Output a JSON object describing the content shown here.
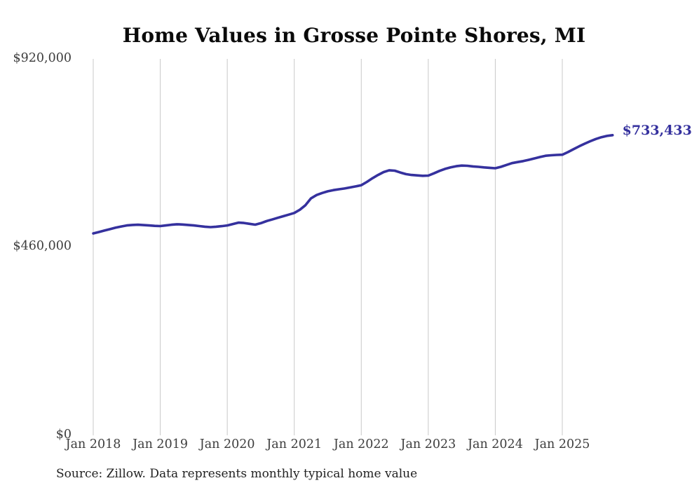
{
  "page": {
    "title": "Home Values in Grosse Pointe Shores, MI",
    "source_note": "Source: Zillow. Data represents monthly typical home value"
  },
  "colors": {
    "line": "#35319e",
    "grid": "#c8c8c8",
    "tick_text": "#3d3d3d",
    "title_text": "#0a0a0a",
    "source_text": "#222222",
    "last_value_text": "#35319e"
  },
  "chart_data": {
    "type": "line",
    "title": "Home Values in Grosse Pointe Shores, MI",
    "series_name": "Typical home value",
    "frequency": "monthly",
    "start_month": "Jan 2018",
    "end_month": "Oct 2025",
    "ylim": [
      0,
      920000
    ],
    "grid": "vertical",
    "legend": "none",
    "yticks": [
      {
        "value": 0,
        "label": "$0"
      },
      {
        "value": 460000,
        "label": "$460,000"
      },
      {
        "value": 920000,
        "label": "$920,000"
      }
    ],
    "xticks": [
      {
        "month_index": 0,
        "label": "Jan 2018"
      },
      {
        "month_index": 12,
        "label": "Jan 2019"
      },
      {
        "month_index": 24,
        "label": "Jan 2020"
      },
      {
        "month_index": 36,
        "label": "Jan 2021"
      },
      {
        "month_index": 48,
        "label": "Jan 2022"
      },
      {
        "month_index": 60,
        "label": "Jan 2023"
      },
      {
        "month_index": 72,
        "label": "Jan 2024"
      },
      {
        "month_index": 84,
        "label": "Jan 2025"
      }
    ],
    "values": [
      493000,
      496500,
      500000,
      503500,
      507000,
      510000,
      512500,
      513800,
      514200,
      513500,
      512500,
      511500,
      511000,
      512500,
      514200,
      515500,
      514800,
      513800,
      512500,
      511000,
      509500,
      508500,
      509500,
      510800,
      512500,
      516000,
      519500,
      518500,
      516500,
      514500,
      518000,
      523000,
      527000,
      531000,
      535000,
      539000,
      543000,
      551000,
      562000,
      579000,
      587000,
      592000,
      596000,
      599000,
      601000,
      603000,
      605500,
      608000,
      611000,
      619000,
      628000,
      636000,
      643000,
      647500,
      646500,
      642000,
      638000,
      636000,
      635000,
      634000,
      634500,
      640000,
      646000,
      651000,
      654500,
      657500,
      659000,
      658500,
      657000,
      656000,
      654500,
      653500,
      652500,
      656000,
      660500,
      665000,
      667500,
      670000,
      673000,
      676500,
      680000,
      683000,
      684200,
      685000,
      685500,
      692000,
      699000,
      706000,
      712500,
      718500,
      724000,
      728500,
      731500,
      733433
    ],
    "last_value": 733433,
    "last_value_label": "$733,433"
  }
}
